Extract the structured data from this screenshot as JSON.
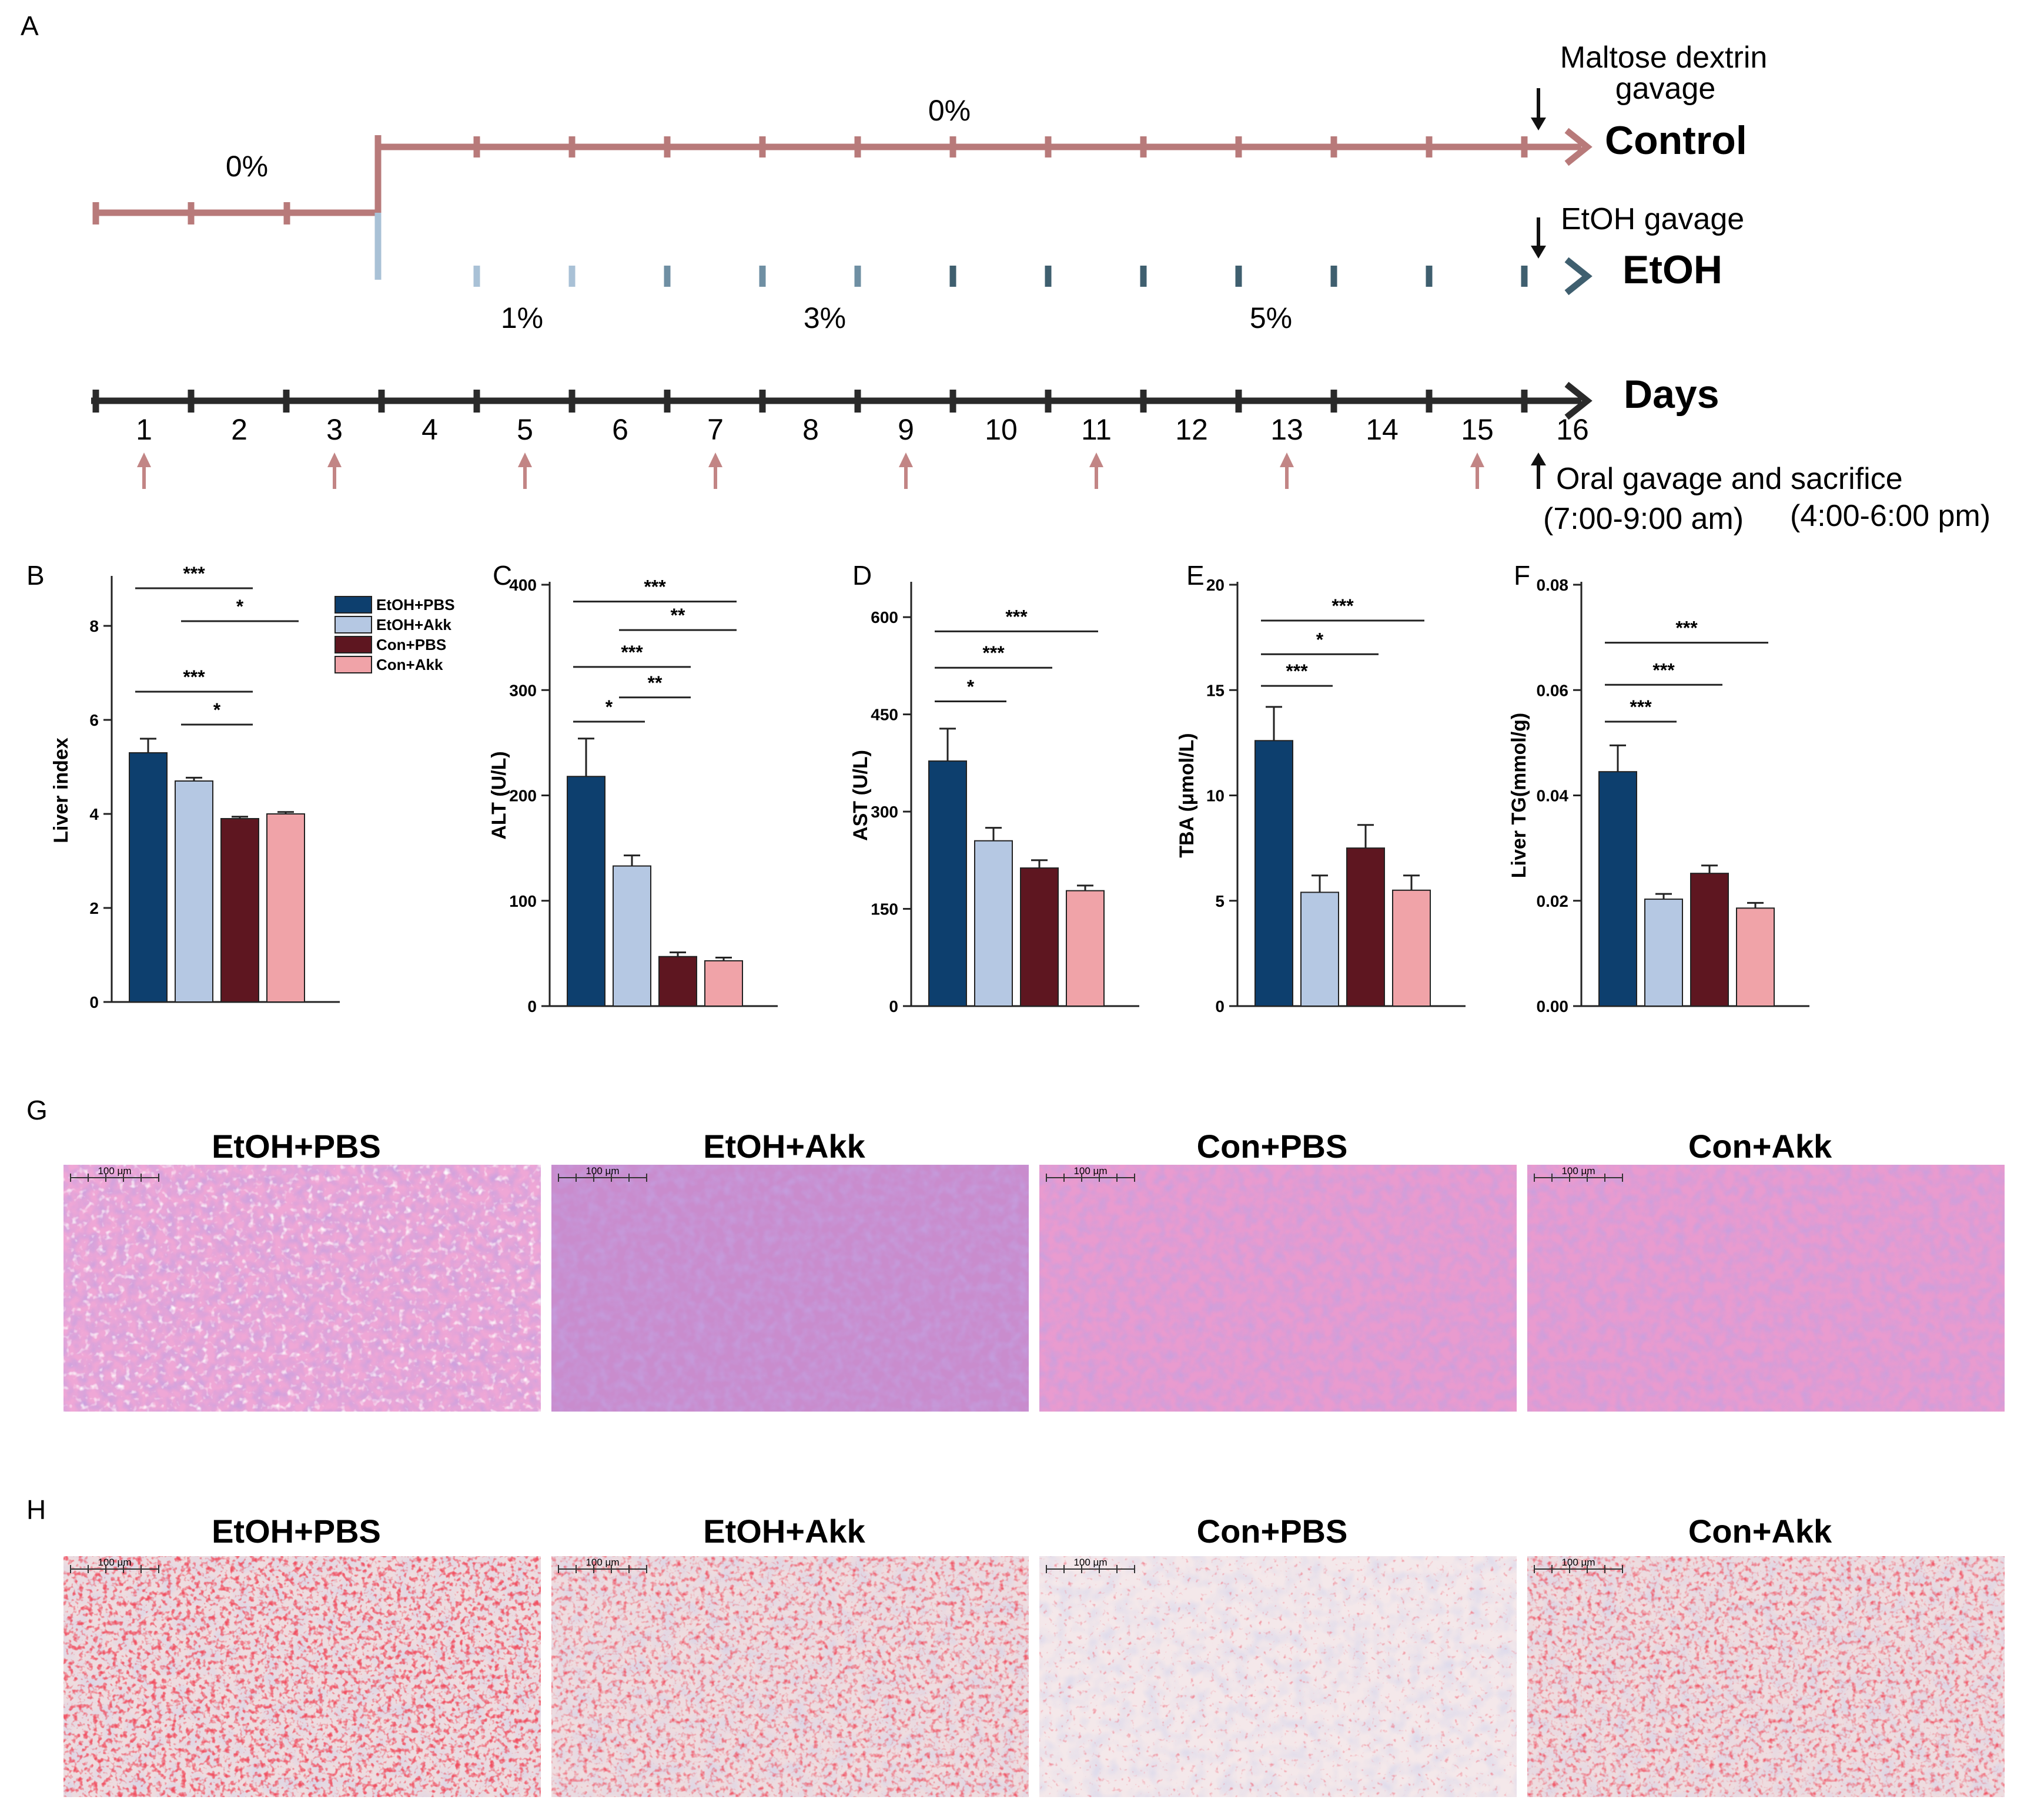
{
  "colors": {
    "control": "#b87a7a",
    "etoh_light": "#a9c1d6",
    "etoh_mid": "#6f8fa3",
    "etoh_dark": "#3f5f6f",
    "days": "#2a2a2a",
    "arrow_pink": "#c28585",
    "etoh_pbs": "#0d3f6e",
    "etoh_akk": "#b5c8e3",
    "con_pbs": "#5e1620",
    "con_akk": "#f0a3a8",
    "he_bg": "#ec9ecf",
    "oro_bg": "#f0dfe0"
  },
  "panel_a": {
    "letter": "A",
    "initial_pct": "0%",
    "control_pct": "0%",
    "control_label": "Control",
    "etoh_label": "EtOH",
    "etoh_pcts": [
      "1%",
      "3%",
      "5%"
    ],
    "maltose_line1": "Maltose dextrin",
    "maltose_line2": "gavage",
    "etoh_gavage": "EtOH gavage",
    "days_label": "Days",
    "days": [
      "1",
      "2",
      "3",
      "4",
      "5",
      "6",
      "7",
      "8",
      "9",
      "10",
      "11",
      "12",
      "13",
      "14",
      "15",
      "16"
    ],
    "arrow_days": [
      1,
      3,
      5,
      7,
      9,
      11,
      13,
      15
    ],
    "oral_label": "Oral gavage and sacrifice",
    "time_am": "(7:00-9:00 am)",
    "time_pm": "(4:00-6:00 pm)"
  },
  "chart_data": [
    {
      "panel": "B",
      "type": "bar",
      "categories": [
        "EtOH+PBS",
        "EtOH+Akk",
        "Con+PBS",
        "Con+Akk"
      ],
      "values": [
        5.3,
        4.7,
        3.9,
        4.0
      ],
      "errors": [
        0.3,
        0.07,
        0.04,
        0.04
      ],
      "ylabel": "Liver index",
      "ylim": [
        0,
        9
      ],
      "yticks": [
        "0",
        "2",
        "4",
        "6",
        "8"
      ],
      "sig": [
        {
          "label": "***",
          "from": 0,
          "to": 2,
          "y": 8.8
        },
        {
          "label": "*",
          "from": 1,
          "to": 3,
          "y": 8.1
        },
        {
          "label": "***",
          "from": 0,
          "to": 2,
          "y": 6.6
        },
        {
          "label": "*",
          "from": 1,
          "to": 2,
          "y": 5.9
        }
      ],
      "legend": [
        "EtOH+PBS",
        "EtOH+Akk",
        "Con+PBS",
        "Con+Akk"
      ]
    },
    {
      "panel": "C",
      "type": "bar",
      "categories": [
        "EtOH+PBS",
        "EtOH+Akk",
        "Con+PBS",
        "Con+Akk"
      ],
      "values": [
        218,
        133,
        47,
        43
      ],
      "errors": [
        36,
        10,
        4,
        3
      ],
      "ylabel": "ALT (U/L)",
      "ylim": [
        0,
        400
      ],
      "yticks": [
        "0",
        "100",
        "200",
        "300",
        "400"
      ],
      "sig": [
        {
          "label": "***",
          "from": 0,
          "to": 3,
          "y": 384
        },
        {
          "label": "**",
          "from": 1,
          "to": 3,
          "y": 357
        },
        {
          "label": "***",
          "from": 0,
          "to": 2,
          "y": 322
        },
        {
          "label": "**",
          "from": 1,
          "to": 2,
          "y": 293
        },
        {
          "label": "*",
          "from": 0,
          "to": 1,
          "y": 270
        }
      ]
    },
    {
      "panel": "D",
      "type": "bar",
      "categories": [
        "EtOH+PBS",
        "EtOH+Akk",
        "Con+PBS",
        "Con+Akk"
      ],
      "values": [
        378,
        255,
        213,
        178
      ],
      "errors": [
        50,
        20,
        12,
        8
      ],
      "ylabel": "AST (U/L)",
      "ylim": [
        0,
        650
      ],
      "yticks": [
        "0",
        "150",
        "300",
        "450",
        "600"
      ],
      "sig": [
        {
          "label": "***",
          "from": 0,
          "to": 3,
          "y": 578
        },
        {
          "label": "***",
          "from": 0,
          "to": 2,
          "y": 522
        },
        {
          "label": "*",
          "from": 0,
          "to": 1,
          "y": 470
        }
      ]
    },
    {
      "panel": "E",
      "type": "bar",
      "categories": [
        "EtOH+PBS",
        "EtOH+Akk",
        "Con+PBS",
        "Con+Akk"
      ],
      "values": [
        12.6,
        5.4,
        7.5,
        5.5
      ],
      "errors": [
        1.6,
        0.8,
        1.1,
        0.7
      ],
      "ylabel": "TBA (μmol/L)",
      "ylim": [
        0,
        20
      ],
      "yticks": [
        "0",
        "5",
        "10",
        "15",
        "20"
      ],
      "sig": [
        {
          "label": "***",
          "from": 0,
          "to": 3,
          "y": 18.3
        },
        {
          "label": "*",
          "from": 0,
          "to": 2,
          "y": 16.7
        },
        {
          "label": "***",
          "from": 0,
          "to": 1,
          "y": 15.2
        }
      ]
    },
    {
      "panel": "F",
      "type": "bar",
      "categories": [
        "EtOH+PBS",
        "EtOH+Akk",
        "Con+PBS",
        "Con+Akk"
      ],
      "values": [
        0.0445,
        0.0203,
        0.0252,
        0.0186
      ],
      "errors": [
        0.005,
        0.001,
        0.0015,
        0.001
      ],
      "ylabel": "Liver TG(mmol/g)",
      "ylim": [
        0,
        0.08
      ],
      "yticks": [
        "0.00",
        "0.02",
        "0.04",
        "0.06",
        "0.08"
      ],
      "sig": [
        {
          "label": "***",
          "from": 0,
          "to": 3,
          "y": 0.069
        },
        {
          "label": "***",
          "from": 0,
          "to": 2,
          "y": 0.061
        },
        {
          "label": "***",
          "from": 0,
          "to": 1,
          "y": 0.054
        }
      ]
    }
  ],
  "panel_g": {
    "letter": "G",
    "titles": [
      "EtOH+PBS",
      "EtOH+Akk",
      "Con+PBS",
      "Con+Akk"
    ],
    "scale": "100 μm"
  },
  "panel_h": {
    "letter": "H",
    "titles": [
      "EtOH+PBS",
      "EtOH+Akk",
      "Con+PBS",
      "Con+Akk"
    ],
    "scale": "100 μm"
  }
}
